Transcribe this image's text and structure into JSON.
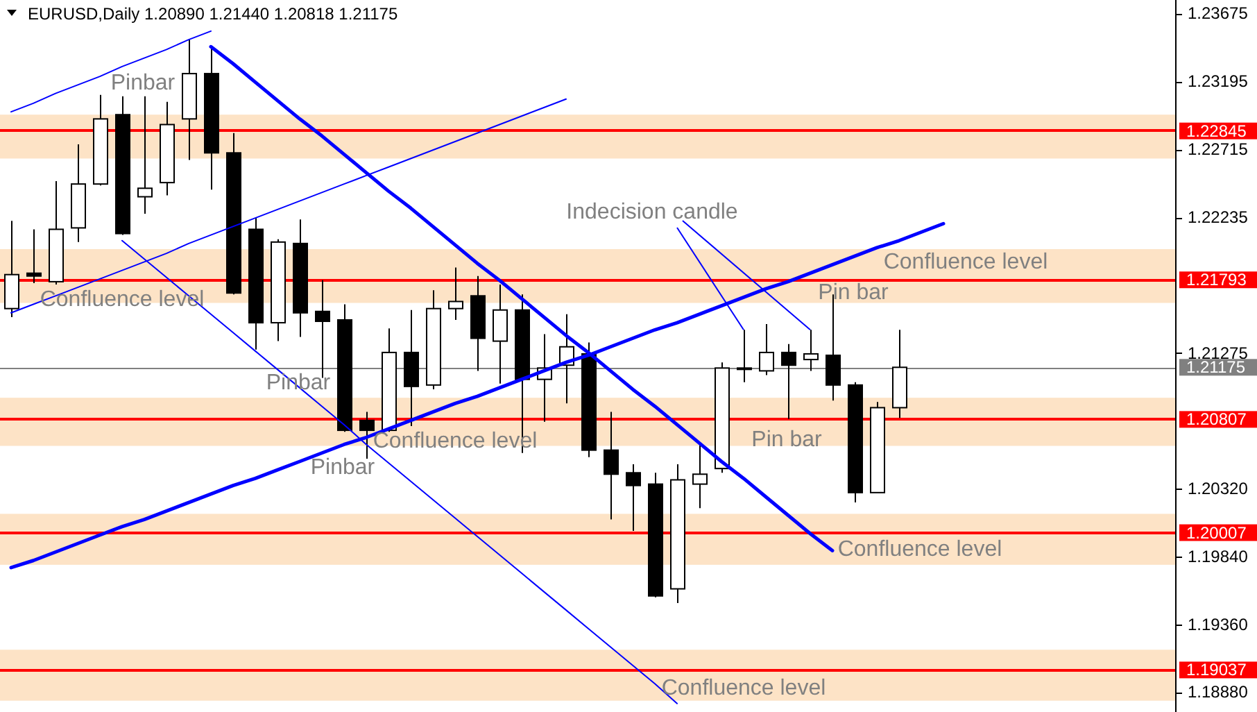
{
  "chart_data": {
    "type": "candlestick",
    "title": "EURUSD,Daily 1.20890 1.21440 1.20818 1.21175",
    "categories": [
      null,
      null,
      null,
      null,
      null,
      null,
      null,
      null,
      null,
      null,
      null,
      null,
      null,
      null,
      null,
      null,
      null,
      null,
      null,
      null,
      null,
      null,
      null,
      null,
      null,
      null,
      null,
      null,
      null,
      null,
      null,
      null,
      null,
      null,
      null,
      null,
      null,
      null,
      null,
      null,
      null,
      null,
      null
    ],
    "ohlc": [
      [
        1.2159,
        1.2221,
        1.2153,
        1.2183
      ],
      [
        1.2184,
        1.2215,
        1.2177,
        1.2182
      ],
      [
        1.2178,
        1.2249,
        1.2176,
        1.2215
      ],
      [
        1.2216,
        1.2275,
        1.2206,
        1.2247
      ],
      [
        1.2247,
        1.231,
        1.2246,
        1.2293
      ],
      [
        1.2296,
        1.2309,
        1.2211,
        1.2212
      ],
      [
        1.2238,
        1.2309,
        1.2226,
        1.2244
      ],
      [
        1.2248,
        1.2305,
        1.2239,
        1.2289
      ],
      [
        1.2293,
        1.2349,
        1.2264,
        1.2325
      ],
      [
        1.2325,
        1.2344,
        1.2243,
        1.2269
      ],
      [
        1.2269,
        1.2283,
        1.2169,
        1.217
      ],
      [
        1.2215,
        1.2223,
        1.213,
        1.2149
      ],
      [
        1.2149,
        1.2208,
        1.2136,
        1.2206
      ],
      [
        1.2205,
        1.2222,
        1.2139,
        1.2156
      ],
      [
        1.2157,
        1.2179,
        1.211,
        1.215
      ],
      [
        1.2151,
        1.2162,
        1.2072,
        1.2073
      ],
      [
        1.208,
        1.2086,
        1.2053,
        1.2073
      ],
      [
        1.2073,
        1.2145,
        1.2072,
        1.2128
      ],
      [
        1.2128,
        1.2158,
        1.2076,
        1.2104
      ],
      [
        1.2105,
        1.2172,
        1.2102,
        1.2159
      ],
      [
        1.2159,
        1.2188,
        1.2151,
        1.2164
      ],
      [
        1.2168,
        1.2182,
        1.2115,
        1.2138
      ],
      [
        1.2136,
        1.2176,
        1.2106,
        1.2158
      ],
      [
        1.2158,
        1.2169,
        1.2057,
        1.2109
      ],
      [
        1.2109,
        1.2141,
        1.2079,
        1.2117
      ],
      [
        1.2119,
        1.2155,
        1.2092,
        1.2132
      ],
      [
        1.2127,
        1.2135,
        1.2054,
        1.2059
      ],
      [
        1.2059,
        1.2086,
        1.201,
        1.2042
      ],
      [
        1.2043,
        1.2049,
        1.2002,
        1.2034
      ],
      [
        1.2035,
        1.2043,
        1.1955,
        1.1956
      ],
      [
        1.1961,
        1.2049,
        1.1951,
        1.2038
      ],
      [
        1.2035,
        1.2064,
        1.2018,
        1.2042
      ],
      [
        1.2046,
        1.2121,
        1.2043,
        1.2117
      ],
      [
        1.2117,
        1.2144,
        1.2107,
        1.2117
      ],
      [
        1.2115,
        1.2148,
        1.2112,
        1.2128
      ],
      [
        1.2128,
        1.2134,
        1.2081,
        1.2119
      ],
      [
        1.2123,
        1.2144,
        1.2115,
        1.2127
      ],
      [
        1.2126,
        1.2169,
        1.2094,
        1.2105
      ],
      [
        1.2105,
        1.2107,
        1.2022,
        1.2029
      ],
      [
        1.2029,
        1.2093,
        1.2029,
        1.2089
      ],
      [
        1.2089,
        1.2144,
        1.20818,
        1.21175
      ],
      null,
      null
    ],
    "colors": [
      "#ffffff",
      "#000000",
      "#ffffff",
      "#ffffff",
      "#ffffff",
      "#000000",
      "#ffffff",
      "#ffffff",
      "#ffffff",
      "#000000",
      "#000000",
      "#000000",
      "#ffffff",
      "#000000",
      "#000000",
      "#000000",
      "#000000",
      "#ffffff",
      "#000000",
      "#ffffff",
      "#ffffff",
      "#000000",
      "#ffffff",
      "#000000",
      "#ffffff",
      "#ffffff",
      "#000000",
      "#000000",
      "#000000",
      "#000000",
      "#ffffff",
      "#ffffff",
      "#ffffff",
      "#ffffff",
      "#ffffff",
      "#000000",
      "#ffffff",
      "#000000",
      "#000000",
      "#ffffff",
      "#ffffff",
      null,
      null
    ],
    "series": [
      {
        "type": "line",
        "color": "#0000ff",
        "values": [
          1.2298,
          1.2304,
          1.2311,
          1.2317,
          1.2323,
          1.233,
          1.2336,
          1.2342,
          1.2349,
          1.2355,
          null,
          null,
          null,
          null,
          null,
          null,
          null,
          null,
          null,
          null,
          null,
          null,
          null,
          null,
          null,
          null,
          null,
          null,
          null,
          null,
          null,
          null,
          null,
          null,
          null,
          null,
          null,
          null,
          null,
          null,
          null,
          null,
          null
        ]
      },
      {
        "type": "line",
        "color": "#0000ff",
        "values": [
          1.2156,
          1.2162,
          1.2168,
          1.2174,
          1.218,
          1.2186,
          1.2192,
          1.2198,
          1.2205,
          1.2211,
          1.2217,
          1.2223,
          1.2229,
          1.2235,
          1.2241,
          1.2247,
          1.2253,
          1.2259,
          1.2265,
          1.2271,
          1.2277,
          1.2283,
          1.2289,
          1.2295,
          1.2301,
          1.2307,
          null,
          null,
          null,
          null,
          null,
          null,
          null,
          null,
          null,
          null,
          null,
          null,
          null,
          null,
          null,
          null,
          null
        ]
      },
      {
        "type": "line",
        "color": "#0000ff",
        "values": [
          null,
          null,
          null,
          null,
          null,
          1.2207,
          1.2194,
          1.2181,
          1.2168,
          1.2155,
          1.2142,
          1.2129,
          1.2116,
          1.2103,
          1.209,
          1.2077,
          1.2063,
          1.205,
          1.2037,
          1.2024,
          1.2011,
          1.1998,
          1.1985,
          1.1972,
          1.1959,
          1.1946,
          1.1933,
          1.192,
          1.1907,
          1.1894,
          1.188,
          null,
          null,
          null,
          null,
          null,
          null,
          null,
          null,
          null,
          null,
          null,
          null
        ]
      },
      {
        "type": "line",
        "color": "#0000ff",
        "values": [
          null,
          null,
          null,
          null,
          null,
          null,
          null,
          null,
          null,
          1.2344,
          1.2332,
          1.2319,
          1.2306,
          1.2293,
          1.2281,
          1.2268,
          1.2255,
          1.2242,
          1.223,
          1.2217,
          1.2204,
          1.2191,
          1.2179,
          1.2166,
          1.2153,
          1.214,
          1.2128,
          1.2115,
          1.2102,
          1.209,
          1.2077,
          1.2064,
          1.2051,
          1.2039,
          1.2026,
          1.2013,
          1.2,
          1.1988,
          null,
          null,
          null,
          null,
          null
        ]
      },
      {
        "type": "line",
        "color": "#0000ff",
        "values": [
          1.1976,
          1.1981,
          1.1987,
          1.1993,
          1.1999,
          1.2005,
          1.201,
          1.2016,
          1.2022,
          1.2028,
          1.2034,
          1.2039,
          1.2045,
          1.2051,
          1.2057,
          1.2063,
          1.2068,
          1.2074,
          1.208,
          1.2086,
          1.2092,
          1.2097,
          1.2103,
          1.2109,
          1.2115,
          1.2121,
          1.2126,
          1.2132,
          1.2138,
          1.2144,
          1.2149,
          1.2155,
          1.2161,
          1.2167,
          1.2173,
          1.2178,
          1.2184,
          1.219,
          1.2196,
          1.2202,
          1.2207,
          1.2213,
          1.2219
        ]
      }
    ],
    "ylim": [
      1.1874,
      1.2377
    ],
    "yticks": [
      1.23675,
      1.23195,
      1.22715,
      1.22235,
      1.21275,
      {
        "value": 1.2032,
        "label": "1.20320"
      },
      {
        "value": 1.1984,
        "label": "1.19840"
      },
      {
        "value": 1.1936,
        "label": "1.19360"
      },
      {
        "value": 1.1888,
        "label": "1.18880"
      }
    ],
    "tick_labels": "y",
    "bands": [
      {
        "axis": "y",
        "from": 1.2265,
        "to": 1.2296,
        "color": "#fde3c6"
      },
      {
        "axis": "y",
        "from": 1.2163,
        "to": 1.2201,
        "color": "#fde3c6"
      },
      {
        "axis": "y",
        "from": 1.2062,
        "to": 1.2096,
        "color": "#fde3c6"
      },
      {
        "axis": "y",
        "from": 1.1978,
        "to": 1.2014,
        "color": "#fde3c6"
      },
      {
        "axis": "y",
        "from": 1.1882,
        "to": 1.1918,
        "color": "#fde3c6"
      }
    ],
    "ref_lines": [
      {
        "axis": "y",
        "value": 1.22845,
        "label": "1.22845",
        "color": "#ff0000"
      },
      {
        "axis": "y",
        "value": 1.21793,
        "label": "1.21793",
        "color": "#ff0000"
      },
      {
        "axis": "y",
        "value": 1.20807,
        "label": "1.20807",
        "color": "#ff0000"
      },
      {
        "axis": "y",
        "value": 1.20007,
        "label": "1.20007",
        "color": "#ff0000"
      },
      {
        "axis": "y",
        "value": 1.19037,
        "label": "1.19037",
        "color": "#ff0000"
      },
      {
        "axis": "y",
        "value": 1.21175,
        "label": "1.21175",
        "color": "#808080"
      }
    ],
    "annotations": [
      "Pinbar",
      "Indecision candle",
      "Confluence level",
      "Pin bar",
      "Confluence level",
      "Pinbar",
      "Pin bar",
      "Confluence level",
      "Pinbar",
      "Confluence level",
      "Confluence level"
    ]
  }
}
